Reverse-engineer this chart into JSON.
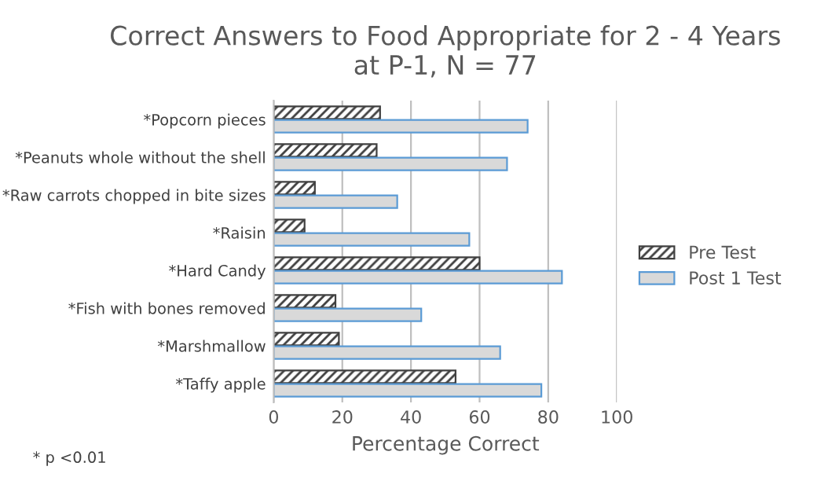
{
  "chart_data": {
    "type": "bar",
    "orientation": "horizontal",
    "title": "Correct Answers to Food Appropriate for 2 - 4 Years\nat P-1, N = 77",
    "xlabel": "Percentage Correct",
    "categories": [
      "*Popcorn pieces",
      "*Peanuts whole without the shell",
      "*Raw carrots chopped in bite sizes",
      "*Raisin",
      "*Hard Candy",
      "*Fish with bones removed",
      "*Marshmallow",
      "*Taffy apple"
    ],
    "series": [
      {
        "name": "Pre Test",
        "color": "#404040",
        "values": [
          31,
          30,
          12,
          9,
          60,
          18,
          19,
          53
        ]
      },
      {
        "name": "Post 1 Test",
        "color": "#d9d9d9",
        "values": [
          74,
          68,
          36,
          57,
          84,
          43,
          66,
          78
        ]
      }
    ],
    "xlim": [
      0,
      100
    ],
    "xticks": [
      0,
      20,
      40,
      60,
      80,
      100
    ],
    "grid": "x",
    "legend": "right",
    "annotations": [
      "* p <0.01"
    ]
  }
}
